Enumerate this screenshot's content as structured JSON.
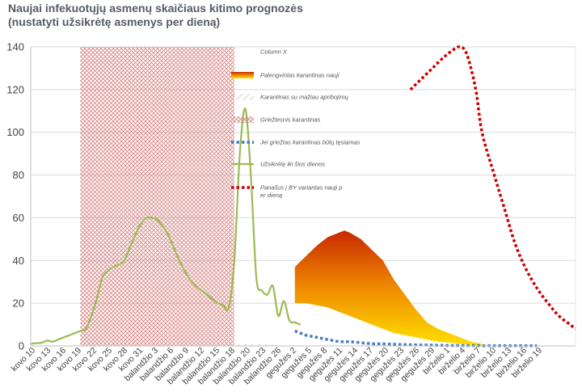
{
  "title": {
    "line1": "Naujai infekuotųjų asmenų skaičiaus kitimo prognozės",
    "line2": "(nustatyti užsikrėtę asmenys per dieną)"
  },
  "colors": {
    "green": "#9cbb52",
    "blue": "#4a7ec0",
    "red": "#cc0000",
    "hatch": "#d88080",
    "grid": "#d9d9d9",
    "gradient_top": "#c82800",
    "gradient_bottom": "#ffe000"
  },
  "chart_data": {
    "type": "line",
    "ylim": [
      0,
      140
    ],
    "yticks": [
      0,
      20,
      40,
      60,
      80,
      100,
      120,
      140
    ],
    "grid": true,
    "legend_position": "top-center",
    "x_index_range": [
      0,
      99
    ],
    "categories": [
      "kovo 10",
      "kovo 13",
      "kovo 16",
      "kovo 19",
      "kovo 22",
      "kovo 25",
      "kovo 28",
      "kovo 31",
      "balandžio 3",
      "balandžio 6",
      "balandžio 9",
      "balandžio 12",
      "balandžio 15",
      "balandžio 18",
      "balandžio 20",
      "balandžio 23",
      "balandžio 26",
      "gegužės 2",
      "gegužės 5",
      "gegužės 8",
      "gegužės 11",
      "gegužės 14",
      "gegužės 17",
      "gegužės 20",
      "gegužės 23",
      "gegužės 26",
      "gegužės 29",
      "birželio 1",
      "birželio 4",
      "birželio 7",
      "birželio 10",
      "birželio 13",
      "birželio 16",
      "birželio 19"
    ],
    "legend": [
      {
        "label": "Column X",
        "style": "none"
      },
      {
        "label": "Palengvintas karantinas nauji",
        "style": "gradient"
      },
      {
        "label": "Karantinas su mažiau apribojimų",
        "style": "hatch-diagonal"
      },
      {
        "label": "Griežtesnis karantinas",
        "style": "hatch-cross"
      },
      {
        "label": "Jei griežtas karantinas būtų tęsiamas",
        "style": "dotted-blue"
      },
      {
        "label": "Užsikrėtę iki šios dienos",
        "style": "solid-green"
      },
      {
        "label": "Panašus į BY variantas nauji per dieną",
        "style": "dotted-red"
      }
    ],
    "regions": [
      {
        "name": "Griežtesnis karantinas",
        "x_start": 9,
        "x_end": 37,
        "y_top": 140
      },
      {
        "name": "Karantinas su mažiau apribojimų",
        "x_start": 37,
        "x_end": 44,
        "y_top": 1
      }
    ],
    "series": [
      {
        "name": "Užsikrėtę iki šios dienos",
        "points": [
          [
            0,
            1
          ],
          [
            1,
            1.3
          ],
          [
            2,
            1.5
          ],
          [
            3,
            2.5
          ],
          [
            4,
            2
          ],
          [
            5,
            3
          ],
          [
            6,
            4
          ],
          [
            7,
            5
          ],
          [
            8,
            6
          ],
          [
            9,
            7
          ],
          [
            10,
            8
          ],
          [
            11,
            14
          ],
          [
            12,
            22
          ],
          [
            13,
            32
          ],
          [
            14,
            35
          ],
          [
            15,
            37
          ],
          [
            16,
            38
          ],
          [
            17,
            40
          ],
          [
            18,
            46
          ],
          [
            19,
            52
          ],
          [
            20,
            57
          ],
          [
            21,
            60
          ],
          [
            22,
            60
          ],
          [
            23,
            59
          ],
          [
            24,
            56
          ],
          [
            25,
            52
          ],
          [
            26,
            46
          ],
          [
            27,
            40
          ],
          [
            28,
            35
          ],
          [
            29,
            31
          ],
          [
            30,
            28
          ],
          [
            31,
            26
          ],
          [
            32,
            24
          ],
          [
            33,
            22
          ],
          [
            34,
            20
          ],
          [
            35,
            19
          ],
          [
            36,
            18
          ],
          [
            37,
            40
          ],
          [
            38,
            90
          ],
          [
            39,
            111
          ],
          [
            40,
            80
          ],
          [
            41,
            32
          ],
          [
            42,
            26
          ],
          [
            43,
            24
          ],
          [
            44,
            28
          ],
          [
            45,
            14
          ],
          [
            46,
            21
          ],
          [
            47,
            12
          ],
          [
            48,
            11
          ],
          [
            49,
            10
          ]
        ]
      },
      {
        "name": "Jei griežtas karantinas būtų tęsiamas",
        "points": [
          [
            48,
            7
          ],
          [
            50,
            5
          ],
          [
            52,
            4
          ],
          [
            54,
            3
          ],
          [
            56,
            2
          ],
          [
            58,
            2
          ],
          [
            60,
            1.5
          ],
          [
            62,
            1
          ],
          [
            64,
            1
          ],
          [
            66,
            0.8
          ],
          [
            68,
            0.6
          ],
          [
            70,
            0.5
          ],
          [
            72,
            0.4
          ],
          [
            74,
            0.3
          ],
          [
            76,
            0.2
          ],
          [
            78,
            0.2
          ],
          [
            80,
            0.2
          ],
          [
            82,
            0.1
          ],
          [
            84,
            0.1
          ],
          [
            86,
            0.1
          ],
          [
            88,
            0.1
          ],
          [
            90,
            0.1
          ],
          [
            92,
            0.1
          ]
        ]
      },
      {
        "name": "Panašus į BY variantas nauji per dieną",
        "points": [
          [
            69,
            120
          ],
          [
            71,
            125
          ],
          [
            73,
            130
          ],
          [
            75,
            135
          ],
          [
            77,
            139
          ],
          [
            78,
            140
          ],
          [
            79,
            138
          ],
          [
            80,
            130
          ],
          [
            81,
            118
          ],
          [
            82,
            100
          ],
          [
            84,
            82
          ],
          [
            86,
            65
          ],
          [
            88,
            48
          ],
          [
            90,
            36
          ],
          [
            92,
            27
          ],
          [
            94,
            20
          ],
          [
            96,
            14
          ],
          [
            98,
            10
          ],
          [
            99,
            8
          ]
        ]
      },
      {
        "name": "Palengvintas karantinas nauji",
        "upper": [
          [
            48,
            37
          ],
          [
            50,
            42
          ],
          [
            52,
            47
          ],
          [
            54,
            51
          ],
          [
            56,
            53
          ],
          [
            57,
            54
          ],
          [
            58,
            53
          ],
          [
            60,
            50
          ],
          [
            62,
            45
          ],
          [
            64,
            40
          ],
          [
            66,
            31
          ],
          [
            68,
            24
          ],
          [
            70,
            17
          ],
          [
            72,
            11
          ],
          [
            74,
            8
          ],
          [
            76,
            6
          ],
          [
            78,
            4
          ],
          [
            80,
            2
          ],
          [
            82,
            1
          ]
        ],
        "lower": [
          [
            48,
            20
          ],
          [
            50,
            20
          ],
          [
            52,
            19
          ],
          [
            54,
            18
          ],
          [
            56,
            16
          ],
          [
            58,
            14
          ],
          [
            60,
            12
          ],
          [
            62,
            10
          ],
          [
            64,
            8
          ],
          [
            66,
            6
          ],
          [
            68,
            5
          ],
          [
            70,
            4
          ],
          [
            72,
            3
          ],
          [
            74,
            2
          ],
          [
            76,
            1.5
          ],
          [
            78,
            1
          ],
          [
            80,
            0.5
          ],
          [
            82,
            0
          ]
        ]
      }
    ]
  }
}
